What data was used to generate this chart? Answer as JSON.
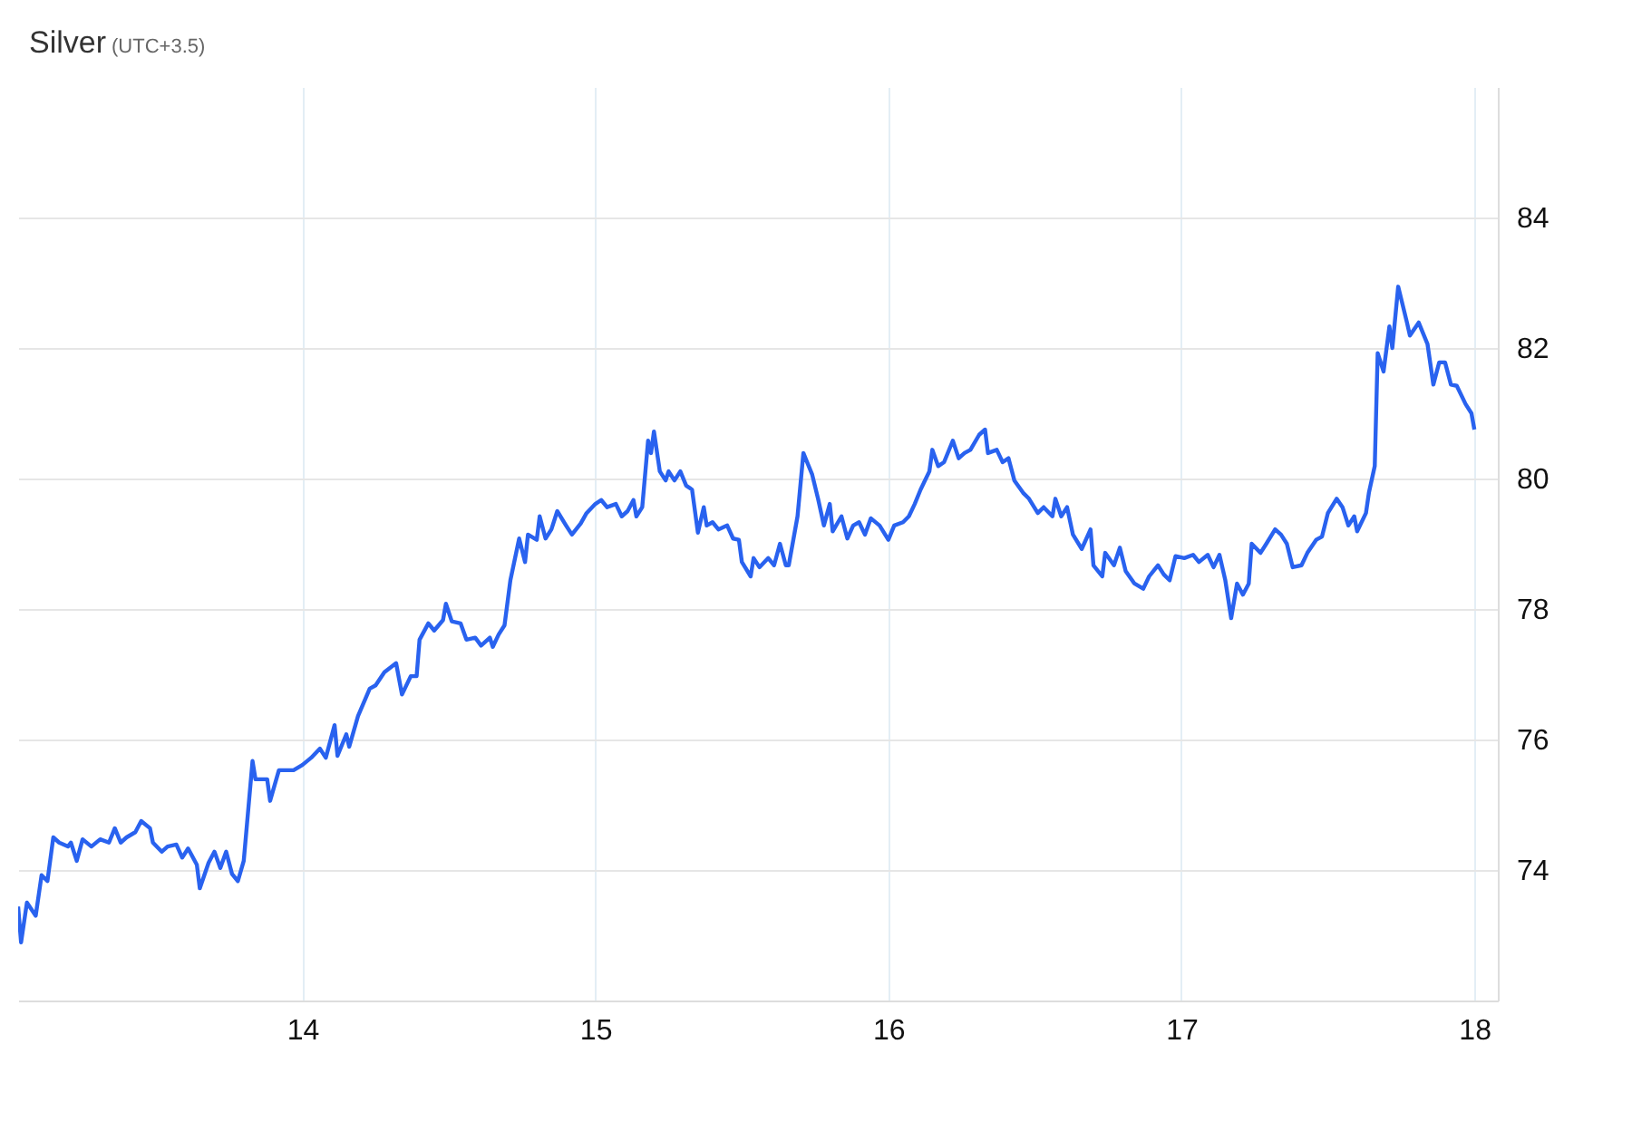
{
  "chart_data": {
    "type": "line",
    "title": "Silver",
    "subtitle": "(UTC+3.5)",
    "xlim": [
      13.03,
      18.08
    ],
    "xticks": [
      14,
      15,
      16,
      17,
      18
    ],
    "ylim": [
      72,
      86
    ],
    "yticks": [
      74,
      76,
      78,
      80,
      82,
      84
    ],
    "grid": true,
    "line_style": "solid",
    "x": [
      13.03,
      13.04,
      13.06,
      13.09,
      13.11,
      13.13,
      13.15,
      13.17,
      13.2,
      13.21,
      13.23,
      13.25,
      13.28,
      13.31,
      13.34,
      13.36,
      13.38,
      13.4,
      13.43,
      13.45,
      13.48,
      13.49,
      13.52,
      13.54,
      13.57,
      13.59,
      13.61,
      13.64,
      13.65,
      13.68,
      13.7,
      13.72,
      13.74,
      13.76,
      13.78,
      13.8,
      13.83,
      13.84,
      13.86,
      13.88,
      13.89,
      13.92,
      13.94,
      13.97,
      14.0,
      14.03,
      14.06,
      14.08,
      14.11,
      14.12,
      14.15,
      14.16,
      14.19,
      14.23,
      14.25,
      14.28,
      14.32,
      14.34,
      14.37,
      14.39,
      14.4,
      14.43,
      14.45,
      14.48,
      14.49,
      14.51,
      14.54,
      14.56,
      14.59,
      14.61,
      14.64,
      14.65,
      14.67,
      14.69,
      14.71,
      14.74,
      14.76,
      14.77,
      14.8,
      14.81,
      14.83,
      14.85,
      14.87,
      14.9,
      14.92,
      14.95,
      14.97,
      15.0,
      15.02,
      15.04,
      15.07,
      15.09,
      15.11,
      15.13,
      15.14,
      15.16,
      15.18,
      15.19,
      15.2,
      15.22,
      15.24,
      15.25,
      15.27,
      15.29,
      15.31,
      15.33,
      15.35,
      15.37,
      15.38,
      15.4,
      15.42,
      15.45,
      15.47,
      15.49,
      15.5,
      15.53,
      15.54,
      15.56,
      15.59,
      15.61,
      15.63,
      15.65,
      15.66,
      15.69,
      15.71,
      15.74,
      15.76,
      15.78,
      15.8,
      15.81,
      15.84,
      15.86,
      15.88,
      15.9,
      15.92,
      15.94,
      15.97,
      16.0,
      16.02,
      16.05,
      16.07,
      16.09,
      16.11,
      16.14,
      16.15,
      16.17,
      16.19,
      16.22,
      16.24,
      16.26,
      16.28,
      16.31,
      16.33,
      16.34,
      16.37,
      16.39,
      16.41,
      16.43,
      16.46,
      16.48,
      16.51,
      16.53,
      16.56,
      16.57,
      16.59,
      16.61,
      16.63,
      16.66,
      16.69,
      16.7,
      16.73,
      16.74,
      16.77,
      16.79,
      16.81,
      16.84,
      16.87,
      16.89,
      16.92,
      16.94,
      16.96,
      16.98,
      17.01,
      17.04,
      17.06,
      17.09,
      17.11,
      17.13,
      17.15,
      17.17,
      17.19,
      17.21,
      17.23,
      17.24,
      17.27,
      17.29,
      17.32,
      17.34,
      17.36,
      17.38,
      17.41,
      17.43,
      17.46,
      17.48,
      17.5,
      17.53,
      17.55,
      17.57,
      17.59,
      17.6,
      17.63,
      17.64,
      17.66,
      17.67,
      17.69,
      17.71,
      17.72,
      17.74,
      17.77,
      17.78,
      17.81,
      17.82,
      17.84,
      17.86,
      17.88,
      17.9,
      17.92,
      17.94,
      17.97,
      17.99,
      18.0
    ],
    "series": [
      {
        "color": "#2962ef",
        "values": [
          73.44,
          72.89,
          73.5,
          73.3,
          73.92,
          73.83,
          74.5,
          74.42,
          74.36,
          74.42,
          74.14,
          74.47,
          74.36,
          74.47,
          74.42,
          74.64,
          74.42,
          74.5,
          74.58,
          74.75,
          74.64,
          74.42,
          74.28,
          74.36,
          74.39,
          74.19,
          74.33,
          74.08,
          73.72,
          74.11,
          74.28,
          74.03,
          74.28,
          73.94,
          73.83,
          74.14,
          75.67,
          75.39,
          75.39,
          75.39,
          75.06,
          75.53,
          75.53,
          75.53,
          75.61,
          75.72,
          75.86,
          75.72,
          76.22,
          75.75,
          76.08,
          75.89,
          76.36,
          76.78,
          76.83,
          77.03,
          77.17,
          76.69,
          76.97,
          76.97,
          77.53,
          77.78,
          77.67,
          77.83,
          78.08,
          77.81,
          77.78,
          77.53,
          77.56,
          77.44,
          77.56,
          77.42,
          77.61,
          77.75,
          78.44,
          79.08,
          78.72,
          79.14,
          79.06,
          79.42,
          79.08,
          79.22,
          79.5,
          79.28,
          79.14,
          79.31,
          79.47,
          79.61,
          79.67,
          79.56,
          79.61,
          79.42,
          79.5,
          79.67,
          79.42,
          79.56,
          80.58,
          80.39,
          80.72,
          80.11,
          79.97,
          80.11,
          79.97,
          80.11,
          79.89,
          79.83,
          79.17,
          79.56,
          79.28,
          79.33,
          79.22,
          79.28,
          79.08,
          79.06,
          78.72,
          78.5,
          78.78,
          78.64,
          78.78,
          78.67,
          79.0,
          78.67,
          78.67,
          79.42,
          80.39,
          80.06,
          79.69,
          79.28,
          79.61,
          79.19,
          79.42,
          79.08,
          79.28,
          79.33,
          79.14,
          79.39,
          79.28,
          79.06,
          79.28,
          79.33,
          79.42,
          79.61,
          79.83,
          80.11,
          80.44,
          80.19,
          80.25,
          80.58,
          80.31,
          80.39,
          80.44,
          80.67,
          80.75,
          80.39,
          80.44,
          80.25,
          80.31,
          79.97,
          79.78,
          79.69,
          79.47,
          79.56,
          79.42,
          79.69,
          79.42,
          79.56,
          79.14,
          78.92,
          79.22,
          78.67,
          78.5,
          78.86,
          78.67,
          78.94,
          78.58,
          78.39,
          78.31,
          78.5,
          78.67,
          78.53,
          78.44,
          78.81,
          78.78,
          78.83,
          78.72,
          78.83,
          78.64,
          78.83,
          78.44,
          77.86,
          78.39,
          78.22,
          78.39,
          79.0,
          78.86,
          79.0,
          79.22,
          79.14,
          79.0,
          78.64,
          78.67,
          78.86,
          79.06,
          79.11,
          79.47,
          79.69,
          79.56,
          79.28,
          79.42,
          79.19,
          79.47,
          79.78,
          80.19,
          81.92,
          81.64,
          82.33,
          82.0,
          82.94,
          82.39,
          82.19,
          82.39,
          82.28,
          82.06,
          81.44,
          81.78,
          81.78,
          81.44,
          81.42,
          81.14,
          81.0,
          80.75
        ]
      }
    ]
  }
}
